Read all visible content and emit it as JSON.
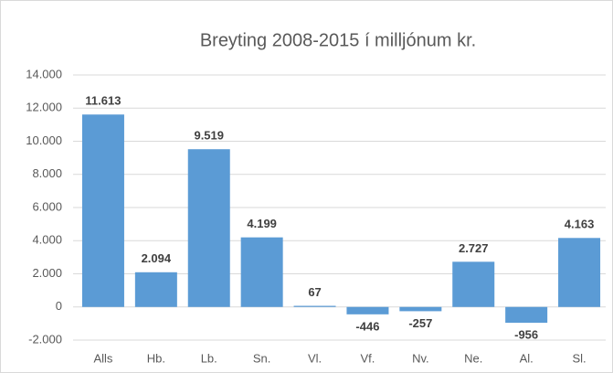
{
  "chart_data": {
    "type": "bar",
    "title": "Breyting 2008-2015 í milljónum kr.",
    "categories": [
      "Alls",
      "Hb.",
      "Lb.",
      "Sn.",
      "Vl.",
      "Vf.",
      "Nv.",
      "Ne.",
      "Al.",
      "Sl."
    ],
    "values": [
      11613,
      2094,
      9519,
      4199,
      67,
      -446,
      -257,
      2727,
      -956,
      4163
    ],
    "value_labels": [
      "11.613",
      "2.094",
      "9.519",
      "4.199",
      "67",
      "-446",
      "-257",
      "2.727",
      "-956",
      "4.163"
    ],
    "color": "#5b9bd5",
    "ylim": [
      -2000,
      14000
    ],
    "yticks": [
      {
        "value": -2000,
        "label": "-2.000"
      },
      0,
      {
        "value": 2000,
        "label": "2.000"
      },
      {
        "value": 4000,
        "label": "4.000"
      },
      {
        "value": 6000,
        "label": "6.000"
      },
      {
        "value": 8000,
        "label": "8.000"
      },
      {
        "value": 10000,
        "label": "10.000"
      },
      {
        "value": 12000,
        "label": "12.000"
      },
      {
        "value": 14000,
        "label": "14.000"
      }
    ],
    "grid": true
  }
}
